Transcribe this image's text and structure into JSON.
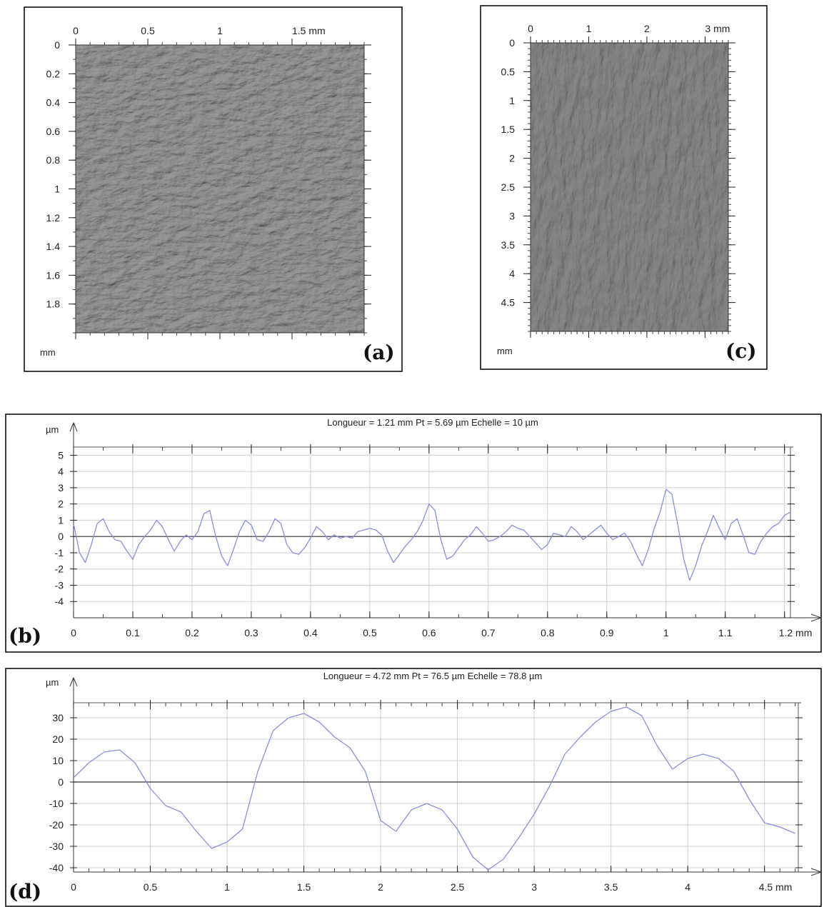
{
  "panels": {
    "a": {
      "tag": "(a)",
      "x_ticks": [
        "0",
        "0.5",
        "1",
        "1.5 mm"
      ],
      "y_ticks": [
        "0",
        "0.2",
        "0.4",
        "0.6",
        "0.8",
        "1",
        "1.2",
        "1.4",
        "1.6",
        "1.8"
      ],
      "unit": "mm"
    },
    "c": {
      "tag": "(c)",
      "x_ticks": [
        "0",
        "1",
        "2",
        "3 mm"
      ],
      "y_ticks": [
        "0",
        "0.5",
        "1",
        "1.5",
        "2",
        "2.5",
        "3",
        "3.5",
        "4",
        "4.5"
      ],
      "unit": "mm"
    },
    "b": {
      "tag": "(b)",
      "title": "Longueur = 1.21 mm  Pt = 5.69 µm  Echelle = 10 µm",
      "y_unit": "µm",
      "x_ticks": [
        "0",
        "0.1",
        "0.2",
        "0.3",
        "0.4",
        "0.5",
        "0.6",
        "0.7",
        "0.8",
        "0.9",
        "1",
        "1.1",
        "1.2 mm"
      ],
      "y_ticks": [
        "5",
        "4",
        "3",
        "2",
        "1",
        "0",
        "-1",
        "-2",
        "-3",
        "-4"
      ]
    },
    "d": {
      "tag": "(d)",
      "title": "Longueur = 4.72 mm  Pt = 76.5 µm  Echelle = 78.8 µm",
      "y_unit": "µm",
      "x_ticks": [
        "0",
        "0.5",
        "1",
        "1.5",
        "2",
        "2.5",
        "3",
        "3.5",
        "4",
        "4.5 mm"
      ],
      "y_ticks": [
        "30",
        "20",
        "10",
        "0",
        "-10",
        "-20",
        "-30",
        "-40"
      ]
    }
  },
  "chart_data": [
    {
      "type": "heatmap",
      "panel": "(a)",
      "xlim": [
        0,
        2.0
      ],
      "ylim": [
        0,
        2.0
      ],
      "x_tick_values": [
        0,
        0.5,
        1,
        1.5
      ],
      "y_tick_values": [
        0,
        0.2,
        0.4,
        0.6,
        0.8,
        1,
        1.2,
        1.4,
        1.6,
        1.8
      ]
    },
    {
      "type": "heatmap",
      "panel": "(c)",
      "xlim": [
        0,
        3.4
      ],
      "ylim": [
        0,
        5.0
      ],
      "x_tick_values": [
        0,
        1,
        2,
        3
      ],
      "y_tick_values": [
        0,
        0.5,
        1,
        1.5,
        2,
        2.5,
        3,
        3.5,
        4,
        4.5
      ]
    },
    {
      "type": "line",
      "panel": "(b)",
      "xlim": [
        0,
        1.21
      ],
      "ylim": [
        -5,
        5.5
      ],
      "x": [
        0,
        0.01,
        0.02,
        0.03,
        0.04,
        0.05,
        0.06,
        0.07,
        0.08,
        0.09,
        0.1,
        0.11,
        0.12,
        0.13,
        0.14,
        0.15,
        0.16,
        0.17,
        0.18,
        0.19,
        0.2,
        0.21,
        0.22,
        0.23,
        0.24,
        0.25,
        0.26,
        0.27,
        0.28,
        0.29,
        0.3,
        0.31,
        0.32,
        0.33,
        0.34,
        0.35,
        0.36,
        0.37,
        0.38,
        0.39,
        0.4,
        0.41,
        0.42,
        0.43,
        0.44,
        0.45,
        0.46,
        0.47,
        0.48,
        0.49,
        0.5,
        0.51,
        0.52,
        0.53,
        0.54,
        0.55,
        0.56,
        0.57,
        0.58,
        0.59,
        0.6,
        0.61,
        0.62,
        0.63,
        0.64,
        0.65,
        0.66,
        0.67,
        0.68,
        0.69,
        0.7,
        0.71,
        0.72,
        0.73,
        0.74,
        0.75,
        0.76,
        0.77,
        0.78,
        0.79,
        0.8,
        0.81,
        0.82,
        0.83,
        0.84,
        0.85,
        0.86,
        0.87,
        0.88,
        0.89,
        0.9,
        0.91,
        0.92,
        0.93,
        0.94,
        0.95,
        0.96,
        0.97,
        0.98,
        0.99,
        1.0,
        1.01,
        1.02,
        1.03,
        1.04,
        1.05,
        1.06,
        1.07,
        1.08,
        1.09,
        1.1,
        1.11,
        1.12,
        1.13,
        1.14,
        1.15,
        1.16,
        1.17,
        1.18,
        1.19,
        1.2,
        1.21
      ],
      "y": [
        0.8,
        -1.0,
        -1.6,
        -0.5,
        0.8,
        1.1,
        0.3,
        -0.2,
        -0.3,
        -0.9,
        -1.4,
        -0.5,
        0.0,
        0.4,
        1.0,
        0.6,
        -0.2,
        -0.9,
        -0.3,
        0.1,
        -0.2,
        0.3,
        1.4,
        1.6,
        0.0,
        -1.2,
        -1.8,
        -0.8,
        0.3,
        1.0,
        0.7,
        -0.2,
        -0.3,
        0.3,
        1.1,
        0.8,
        -0.5,
        -1.0,
        -1.1,
        -0.7,
        -0.1,
        0.6,
        0.3,
        -0.2,
        0.1,
        -0.1,
        0.0,
        -0.1,
        0.3,
        0.4,
        0.5,
        0.4,
        0.1,
        -0.9,
        -1.6,
        -1.1,
        -0.6,
        -0.2,
        0.3,
        1.0,
        2.0,
        1.6,
        -0.2,
        -1.4,
        -1.2,
        -0.7,
        -0.2,
        0.1,
        0.6,
        0.2,
        -0.3,
        -0.2,
        0.0,
        0.3,
        0.7,
        0.5,
        0.4,
        0.0,
        -0.4,
        -0.8,
        -0.5,
        0.2,
        0.1,
        0.0,
        0.6,
        0.3,
        -0.2,
        0.1,
        0.4,
        0.7,
        0.2,
        -0.2,
        0.0,
        0.2,
        -0.3,
        -1.1,
        -1.8,
        -0.8,
        0.5,
        1.5,
        2.9,
        2.6,
        0.7,
        -1.4,
        -2.7,
        -1.8,
        -0.6,
        0.3,
        1.3,
        0.5,
        -0.2,
        0.8,
        1.1,
        0.1,
        -1.0,
        -1.1,
        -0.3,
        0.2,
        0.6,
        0.8,
        1.3,
        1.5
      ]
    },
    {
      "type": "line",
      "panel": "(d)",
      "xlim": [
        0,
        4.72
      ],
      "ylim": [
        -42,
        37
      ],
      "x": [
        0,
        0.1,
        0.2,
        0.3,
        0.4,
        0.5,
        0.6,
        0.7,
        0.8,
        0.9,
        1.0,
        1.1,
        1.2,
        1.3,
        1.4,
        1.5,
        1.6,
        1.7,
        1.8,
        1.9,
        2.0,
        2.1,
        2.2,
        2.3,
        2.4,
        2.5,
        2.6,
        2.7,
        2.8,
        2.9,
        3.0,
        3.1,
        3.2,
        3.3,
        3.4,
        3.5,
        3.6,
        3.7,
        3.8,
        3.9,
        4.0,
        4.1,
        4.2,
        4.3,
        4.4,
        4.5,
        4.6,
        4.7
      ],
      "y": [
        2,
        9,
        14,
        15,
        9,
        -3,
        -11,
        -14,
        -23,
        -31,
        -28,
        -22,
        5,
        24,
        30,
        32,
        28,
        21,
        16,
        5,
        -18,
        -23,
        -13,
        -10,
        -13,
        -22,
        -35,
        -41,
        -36,
        -26,
        -15,
        -2,
        13,
        21,
        28,
        33,
        35,
        31,
        17,
        6,
        11,
        13,
        11,
        5,
        -8,
        -19,
        -21,
        -24
      ]
    }
  ]
}
